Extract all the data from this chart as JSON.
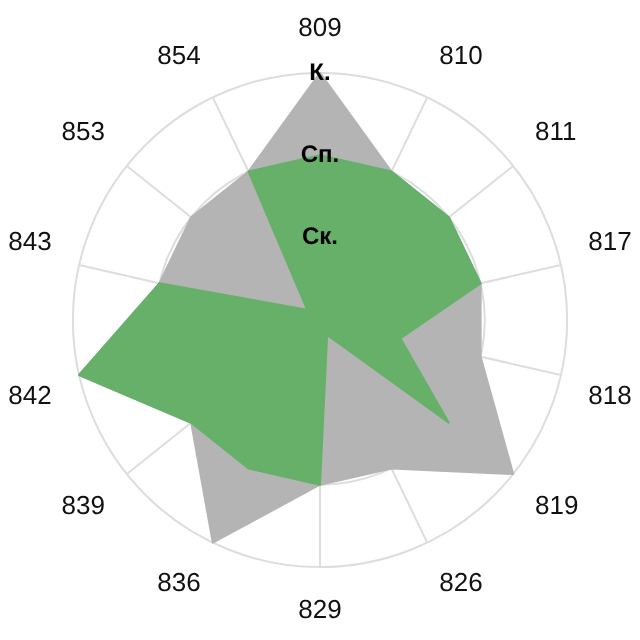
{
  "chart_data": {
    "type": "radar",
    "categories": [
      "809",
      "810",
      "811",
      "817",
      "818",
      "819",
      "826",
      "829",
      "836",
      "839",
      "842",
      "843",
      "853",
      "854"
    ],
    "series": [
      {
        "color": "#66b06a",
        "values": [
          2,
          2,
          2,
          2,
          1,
          2,
          0.2,
          2,
          2,
          2,
          3,
          2,
          0.2,
          2
        ]
      },
      {
        "color": "#b4b4b4",
        "values": [
          3,
          2,
          2,
          2,
          2,
          3,
          2,
          2,
          3,
          2,
          3,
          2,
          2,
          2
        ]
      }
    ],
    "ylim": [
      0,
      3
    ],
    "yticks": [
      {
        "value": 1,
        "label": "Ск."
      },
      {
        "value": 2,
        "label": "Сп."
      },
      {
        "value": 3,
        "label": "К."
      }
    ],
    "grid": true,
    "legend": false,
    "marker": "none"
  }
}
